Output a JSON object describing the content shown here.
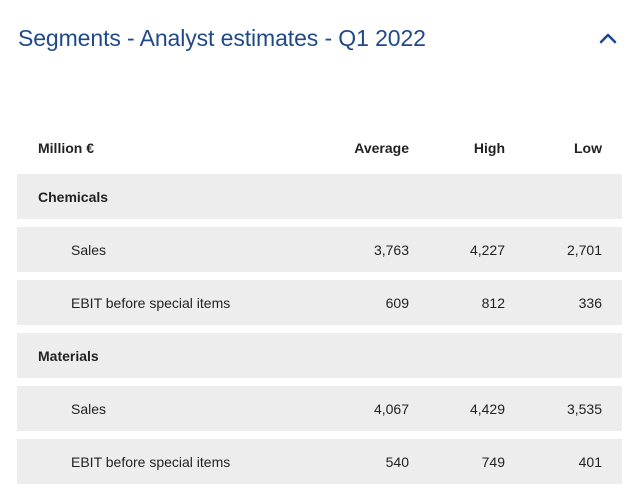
{
  "header": {
    "title": "Segments - Analyst estimates - Q1 2022",
    "toggle_icon": "chevron-up-icon",
    "accent_color": "#21498a"
  },
  "table": {
    "columns": {
      "label": "Million €",
      "average": "Average",
      "high": "High",
      "low": "Low"
    },
    "sections": [
      {
        "name": "Chemicals",
        "rows": [
          {
            "label": "Sales",
            "average": "3,763",
            "high": "4,227",
            "low": "2,701"
          },
          {
            "label": "EBIT before special items",
            "average": "609",
            "high": "812",
            "low": "336"
          }
        ]
      },
      {
        "name": "Materials",
        "rows": [
          {
            "label": "Sales",
            "average": "4,067",
            "high": "4,429",
            "low": "3,535"
          },
          {
            "label": "EBIT before special items",
            "average": "540",
            "high": "749",
            "low": "401"
          }
        ]
      }
    ]
  }
}
